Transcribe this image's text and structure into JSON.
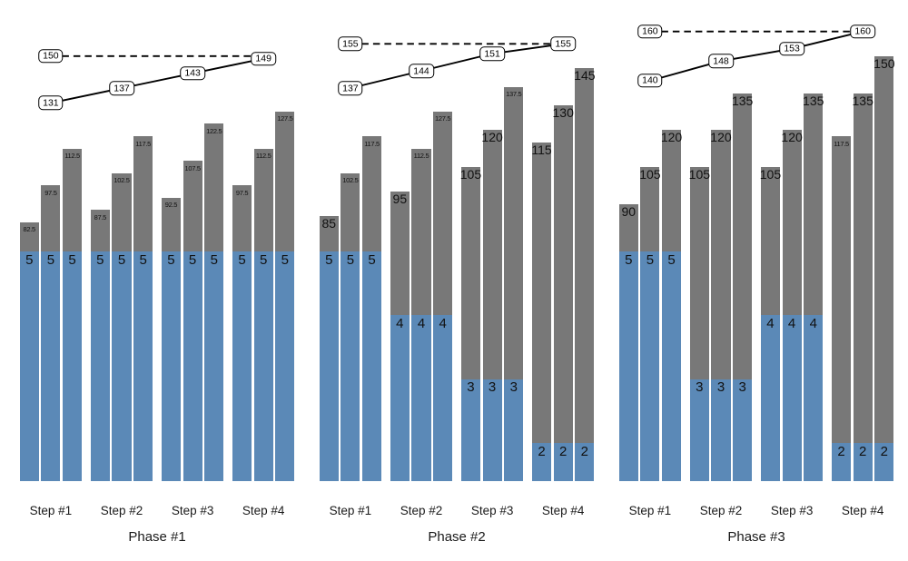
{
  "chart_data": {
    "type": "bar",
    "title": "",
    "grid": false,
    "legend": "none",
    "background_color": "#ffffff",
    "colors": {
      "gray_bar": "#787878",
      "blue_bar": "#5b89b7",
      "line": "#000000",
      "label_box_bg": "#ffffff",
      "label_box_border": "#000000",
      "text": "#1a1a1a"
    },
    "panels": [
      {
        "phase_label": "Phase #1",
        "target_line_value": 150,
        "trend_line_values": [
          131,
          137,
          143,
          149
        ],
        "groups": [
          {
            "step_label": "Step #1",
            "gray_bar_values": [
              82.5,
              97.5,
              112.5
            ],
            "blue_bar_values": [
              5,
              5,
              5
            ]
          },
          {
            "step_label": "Step #2",
            "gray_bar_values": [
              87.5,
              102.5,
              117.5
            ],
            "blue_bar_values": [
              5,
              5,
              5
            ]
          },
          {
            "step_label": "Step #3",
            "gray_bar_values": [
              92.5,
              107.5,
              122.5
            ],
            "blue_bar_values": [
              5,
              5,
              5
            ]
          },
          {
            "step_label": "Step #4",
            "gray_bar_values": [
              97.5,
              112.5,
              127.5
            ],
            "blue_bar_values": [
              5,
              5,
              5
            ]
          }
        ]
      },
      {
        "phase_label": "Phase #2",
        "target_line_value": 155,
        "trend_line_values": [
          137,
          144,
          151,
          155
        ],
        "groups": [
          {
            "step_label": "Step #1",
            "gray_bar_values": [
              85,
              102.5,
              117.5
            ],
            "blue_bar_values": [
              5,
              5,
              5
            ]
          },
          {
            "step_label": "Step #2",
            "gray_bar_values": [
              95,
              112.5,
              127.5
            ],
            "blue_bar_values": [
              4,
              4,
              4
            ]
          },
          {
            "step_label": "Step #3",
            "gray_bar_values": [
              105,
              120,
              137.5
            ],
            "blue_bar_values": [
              3,
              3,
              3
            ]
          },
          {
            "step_label": "Step #4",
            "gray_bar_values": [
              115,
              130,
              145
            ],
            "blue_bar_values": [
              2,
              2,
              2
            ]
          }
        ]
      },
      {
        "phase_label": "Phase #3",
        "target_line_value": 160,
        "trend_line_values": [
          140,
          148,
          153,
          160
        ],
        "groups": [
          {
            "step_label": "Step #1",
            "gray_bar_values": [
              90,
              105,
              120
            ],
            "blue_bar_values": [
              5,
              5,
              5
            ]
          },
          {
            "step_label": "Step #2",
            "gray_bar_values": [
              105,
              120,
              135
            ],
            "blue_bar_values": [
              3,
              3,
              3
            ]
          },
          {
            "step_label": "Step #3",
            "gray_bar_values": [
              105,
              120,
              135
            ],
            "blue_bar_values": [
              4,
              4,
              4
            ]
          },
          {
            "step_label": "Step #4",
            "gray_bar_values": [
              117.5,
              135,
              150
            ],
            "blue_bar_values": [
              2,
              2,
              2
            ]
          }
        ]
      }
    ]
  }
}
